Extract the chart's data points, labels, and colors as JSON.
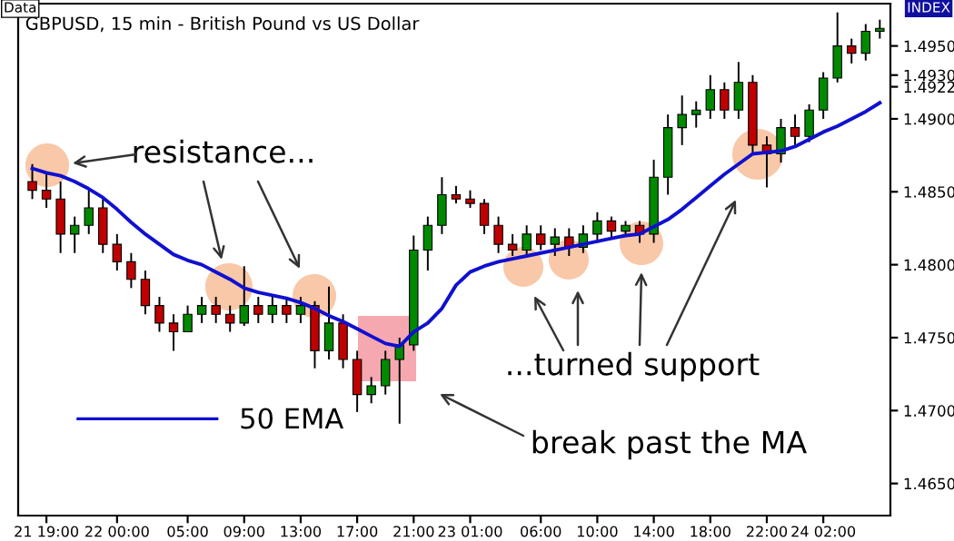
{
  "chart_data": {
    "type": "candlestick",
    "title": "GBPUSD, 15 min - British Pound vs US Dollar",
    "categories": [
      null,
      "21 19:00",
      null,
      null,
      null,
      null,
      "22 00:00",
      null,
      null,
      null,
      null,
      "05:00",
      null,
      null,
      null,
      "09:00",
      null,
      null,
      null,
      "13:00",
      null,
      null,
      null,
      "17:00",
      null,
      null,
      null,
      "21:00",
      null,
      null,
      null,
      "23 01:00",
      null,
      null,
      null,
      null,
      "06:00",
      null,
      null,
      null,
      "10:00",
      null,
      null,
      null,
      "14:00",
      null,
      null,
      null,
      "18:00",
      null,
      null,
      null,
      "22:00",
      null,
      null,
      null,
      "24 02:00",
      null,
      null,
      null,
      null
    ],
    "ohlc": [
      [
        1.4857,
        1.4869,
        1.4845,
        1.4851
      ],
      [
        1.4851,
        1.4863,
        1.4839,
        1.4845
      ],
      [
        1.4845,
        1.4857,
        1.4808,
        1.4821
      ],
      [
        1.4821,
        1.4833,
        1.4808,
        1.4827
      ],
      [
        1.4827,
        1.4851,
        1.4821,
        1.4839
      ],
      [
        1.4839,
        1.4845,
        1.4808,
        1.4814
      ],
      [
        1.4814,
        1.4821,
        1.4796,
        1.4802
      ],
      [
        1.4802,
        1.4808,
        1.4784,
        1.479
      ],
      [
        1.479,
        1.4796,
        1.4766,
        1.4772
      ],
      [
        1.4772,
        1.4778,
        1.4754,
        1.476
      ],
      [
        1.476,
        1.4766,
        1.4741,
        1.4754
      ],
      [
        1.4754,
        1.4772,
        1.4754,
        1.4766
      ],
      [
        1.4766,
        1.4778,
        1.476,
        1.4772
      ],
      [
        1.4772,
        1.4778,
        1.476,
        1.4766
      ],
      [
        1.4766,
        1.4772,
        1.4754,
        1.476
      ],
      [
        1.476,
        1.4799,
        1.4758,
        1.4772
      ],
      [
        1.4772,
        1.4778,
        1.476,
        1.4766
      ],
      [
        1.4766,
        1.4778,
        1.476,
        1.4772
      ],
      [
        1.4772,
        1.4778,
        1.476,
        1.4766
      ],
      [
        1.4766,
        1.4778,
        1.476,
        1.4772
      ],
      [
        1.4772,
        1.4775,
        1.4729,
        1.4741
      ],
      [
        1.4741,
        1.4785,
        1.4735,
        1.476
      ],
      [
        1.476,
        1.4766,
        1.4729,
        1.4735
      ],
      [
        1.4735,
        1.4741,
        1.4699,
        1.4711
      ],
      [
        1.4711,
        1.4723,
        1.4705,
        1.4717
      ],
      [
        1.4717,
        1.4741,
        1.4711,
        1.4735
      ],
      [
        1.4735,
        1.475,
        1.4691,
        1.4745
      ],
      [
        1.4745,
        1.482,
        1.4741,
        1.481
      ],
      [
        1.481,
        1.4833,
        1.4796,
        1.4827
      ],
      [
        1.4827,
        1.486,
        1.4821,
        1.4848
      ],
      [
        1.4848,
        1.4854,
        1.4842,
        1.4845
      ],
      [
        1.4845,
        1.4851,
        1.4839,
        1.4842
      ],
      [
        1.4842,
        1.4845,
        1.4821,
        1.4827
      ],
      [
        1.4827,
        1.4833,
        1.4808,
        1.4814
      ],
      [
        1.4814,
        1.4821,
        1.4806,
        1.481
      ],
      [
        1.481,
        1.4827,
        1.4806,
        1.4821
      ],
      [
        1.4821,
        1.4827,
        1.481,
        1.4814
      ],
      [
        1.4814,
        1.4825,
        1.4806,
        1.4819
      ],
      [
        1.4819,
        1.4825,
        1.4806,
        1.4812
      ],
      [
        1.4812,
        1.4827,
        1.4808,
        1.4821
      ],
      [
        1.4821,
        1.4836,
        1.4815,
        1.483
      ],
      [
        1.483,
        1.4833,
        1.4819,
        1.4823
      ],
      [
        1.4823,
        1.483,
        1.4819,
        1.4827
      ],
      [
        1.4827,
        1.483,
        1.4815,
        1.4821
      ],
      [
        1.4821,
        1.4872,
        1.4815,
        1.486
      ],
      [
        1.486,
        1.4903,
        1.4848,
        1.4894
      ],
      [
        1.4894,
        1.4916,
        1.4882,
        1.4903
      ],
      [
        1.4903,
        1.4912,
        1.4894,
        1.4906
      ],
      [
        1.4906,
        1.493,
        1.49,
        1.492
      ],
      [
        1.492,
        1.4925,
        1.49,
        1.4906
      ],
      [
        1.4906,
        1.4939,
        1.49,
        1.4925
      ],
      [
        1.4925,
        1.493,
        1.4876,
        1.4882
      ],
      [
        1.4882,
        1.4888,
        1.4853,
        1.4876
      ],
      [
        1.4876,
        1.49,
        1.487,
        1.4894
      ],
      [
        1.4894,
        1.4903,
        1.4882,
        1.4888
      ],
      [
        1.4888,
        1.491,
        1.4884,
        1.4906
      ],
      [
        1.4906,
        1.4932,
        1.49,
        1.4928
      ],
      [
        1.4928,
        1.4973,
        1.4925,
        1.495
      ],
      [
        1.495,
        1.4955,
        1.4938,
        1.4945
      ],
      [
        1.4945,
        1.4965,
        1.494,
        1.496
      ],
      [
        1.496,
        1.4968,
        1.4955,
        1.4962
      ]
    ],
    "series": [
      {
        "type": "line",
        "name": "50 EMA",
        "color": "#1010d0",
        "values": [
          1.4866,
          1.4863,
          1.4861,
          1.4857,
          1.4852,
          1.4846,
          1.4838,
          1.4829,
          1.4821,
          1.4814,
          1.4807,
          1.4803,
          1.48,
          1.4795,
          1.479,
          1.4784,
          1.4781,
          1.4779,
          1.4777,
          1.4774,
          1.477,
          1.4765,
          1.4761,
          1.4756,
          1.4751,
          1.4746,
          1.4744,
          1.4754,
          1.476,
          1.477,
          1.4786,
          1.4795,
          1.4799,
          1.4802,
          1.4804,
          1.4806,
          1.4808,
          1.481,
          1.4812,
          1.4814,
          1.4816,
          1.4818,
          1.482,
          1.4821,
          1.4826,
          1.4831,
          1.4838,
          1.4846,
          1.4854,
          1.4862,
          1.4869,
          1.4876,
          1.4877,
          1.4878,
          1.4881,
          1.4886,
          1.4891,
          1.4895,
          1.49,
          1.4905,
          1.4911
        ]
      }
    ],
    "ylim": [
      1.4628,
      1.4979
    ],
    "yticks": [
      {
        "value": 1.465,
        "label": "1.4650"
      },
      {
        "value": 1.47,
        "label": "1.4700"
      },
      {
        "value": 1.475,
        "label": "1.4750"
      },
      {
        "value": 1.48,
        "label": "1.4800"
      },
      {
        "value": 1.485,
        "label": "1.4850"
      },
      {
        "value": 1.49,
        "label": "1.4900"
      },
      {
        "value": 1.4922,
        "label": "1.4922"
      },
      {
        "value": 1.493,
        "label": "1.4930"
      },
      {
        "value": 1.495,
        "label": "1.4950"
      }
    ],
    "legend": "bottom left",
    "annotations": [
      "resistance...",
      "...turned support",
      "break past the MA",
      "Data",
      "INDEX"
    ]
  }
}
